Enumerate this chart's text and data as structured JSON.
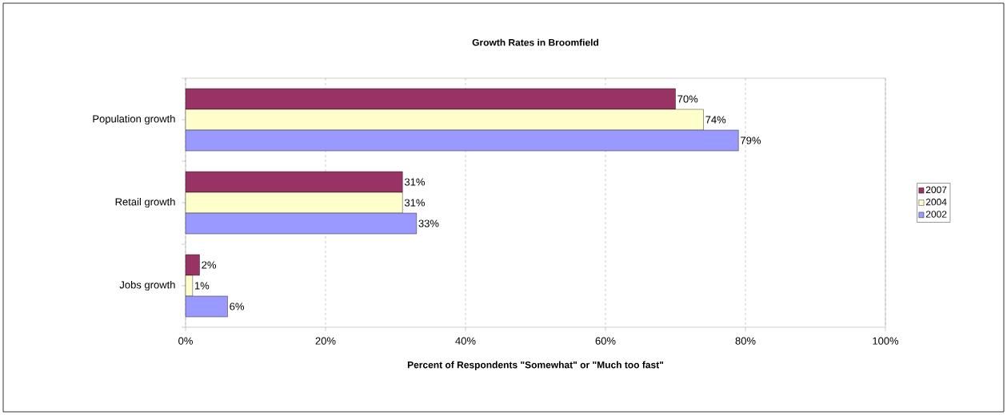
{
  "chart_data": {
    "type": "bar",
    "orientation": "horizontal",
    "title": "Growth Rates in Broomfield",
    "xlabel": "Percent of Respondents \"Somewhat\" or \"Much too fast\"",
    "categories": [
      "Population growth",
      "Retail growth",
      "Jobs growth"
    ],
    "series": [
      {
        "name": "2007",
        "color": "#993366",
        "values": [
          70,
          31,
          2
        ],
        "value_labels": [
          "70%",
          "31%",
          "2%"
        ]
      },
      {
        "name": "2004",
        "color": "#ffffcc",
        "values": [
          74,
          31,
          1
        ],
        "value_labels": [
          "74%",
          "31%",
          "1%"
        ]
      },
      {
        "name": "2002",
        "color": "#9999ff",
        "values": [
          79,
          33,
          6
        ],
        "value_labels": [
          "79%",
          "33%",
          "6%"
        ]
      }
    ],
    "xlim": [
      0,
      100
    ],
    "xticks": [
      {
        "value": 0,
        "label": "0%"
      },
      {
        "value": 20,
        "label": "20%"
      },
      {
        "value": 40,
        "label": "40%"
      },
      {
        "value": 60,
        "label": "60%"
      },
      {
        "value": 80,
        "label": "80%"
      },
      {
        "value": 100,
        "label": "100%"
      }
    ],
    "grid": "x",
    "legend": "right"
  }
}
